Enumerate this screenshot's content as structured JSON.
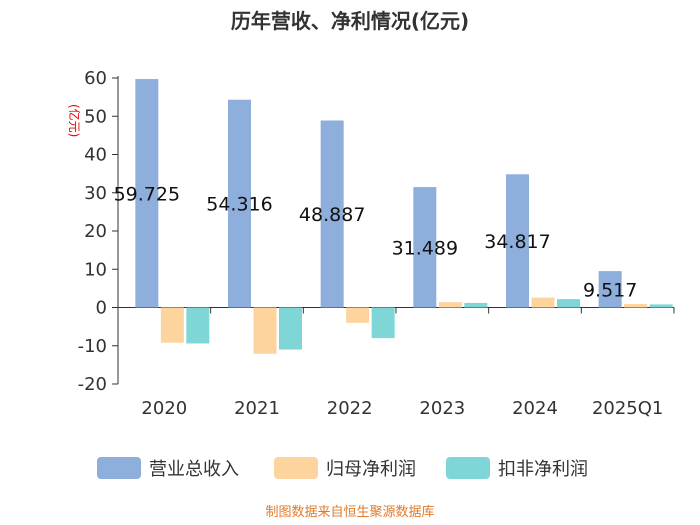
{
  "chart_data": {
    "type": "bar",
    "title": "历年营收、净利情况(亿元)",
    "unit_label": "(亿元)",
    "categories": [
      "2020",
      "2021",
      "2022",
      "2023",
      "2024",
      "2025Q1"
    ],
    "series": [
      {
        "name": "营业总收入",
        "color": "#8eaedc",
        "values": [
          59.725,
          54.316,
          48.887,
          31.489,
          34.817,
          9.517
        ]
      },
      {
        "name": "归母净利润",
        "color": "#fdd49e",
        "values": [
          -9.2,
          -12.1,
          -4.0,
          1.4,
          2.6,
          0.9
        ]
      },
      {
        "name": "扣非净利润",
        "color": "#7fd6d6",
        "values": [
          -9.4,
          -11.0,
          -8.0,
          1.2,
          2.2,
          0.8
        ]
      }
    ],
    "data_labels": [
      "59.725",
      "54.316",
      "48.887",
      "31.489",
      "34.817",
      "9.517"
    ],
    "yticks": [
      60,
      50,
      40,
      30,
      20,
      10,
      0,
      -10,
      -20
    ],
    "ylim": [
      -20,
      60
    ],
    "xlabel": "",
    "ylabel": "(亿元)",
    "legend_position": "bottom",
    "grid": false
  },
  "source": "制图数据来自恒生聚源数据库"
}
